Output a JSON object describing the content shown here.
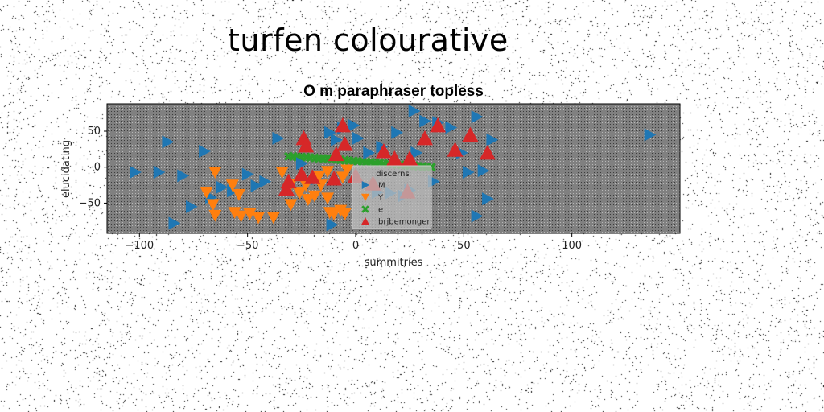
{
  "page": {
    "suptitle": "turfen colourative"
  },
  "chart_data": {
    "type": "scatter",
    "title": "O m paraphraser topless",
    "xlabel": "summitries",
    "ylabel": "elucidating",
    "xlim": [
      -115,
      150
    ],
    "ylim": [
      -92,
      88
    ],
    "xticks": [
      -100,
      -50,
      0,
      50,
      100
    ],
    "yticks": [
      50,
      0,
      -50
    ],
    "grid": false,
    "legend": {
      "title": "discerns",
      "placement": "lower-center"
    },
    "colors": {
      "plot_bg": "#808080",
      "M": "#1f77b4",
      "Y": "#ff7f0e",
      "e": "#2ca02c",
      "brjbemonger": "#d62728"
    },
    "series": [
      {
        "name": "M",
        "marker": "triangle-right",
        "color": "#1f77b4",
        "points": [
          [
            -102,
            -7
          ],
          [
            -91,
            -7
          ],
          [
            -80,
            -12
          ],
          [
            -87,
            35
          ],
          [
            -70,
            22
          ],
          [
            -84,
            -78
          ],
          [
            -76,
            -55
          ],
          [
            -67,
            -42
          ],
          [
            -62,
            -28
          ],
          [
            -57,
            -33
          ],
          [
            -50,
            -10
          ],
          [
            -46,
            -26
          ],
          [
            -42,
            -20
          ],
          [
            -36,
            40
          ],
          [
            -25,
            5
          ],
          [
            -18,
            -16
          ],
          [
            -12,
            48
          ],
          [
            -11,
            -80
          ],
          [
            -9,
            38
          ],
          [
            -6,
            54
          ],
          [
            -1,
            58
          ],
          [
            1,
            40
          ],
          [
            6,
            20
          ],
          [
            10,
            -35
          ],
          [
            12,
            28
          ],
          [
            16,
            -36
          ],
          [
            19,
            48
          ],
          [
            22,
            -40
          ],
          [
            25,
            -32
          ],
          [
            28,
            20
          ],
          [
            27,
            78
          ],
          [
            32,
            64
          ],
          [
            38,
            62
          ],
          [
            44,
            55
          ],
          [
            36,
            -20
          ],
          [
            49,
            20
          ],
          [
            52,
            -7
          ],
          [
            56,
            70
          ],
          [
            56,
            -68
          ],
          [
            59,
            -5
          ],
          [
            61,
            -44
          ],
          [
            63,
            38
          ],
          [
            136,
            45
          ]
        ]
      },
      {
        "name": "Y",
        "marker": "triangle-down",
        "color": "#ff7f0e",
        "points": [
          [
            -65,
            -7
          ],
          [
            -69,
            -35
          ],
          [
            -66,
            -52
          ],
          [
            -65,
            -67
          ],
          [
            -57,
            -25
          ],
          [
            -54,
            -38
          ],
          [
            -56,
            -63
          ],
          [
            -53,
            -68
          ],
          [
            -49,
            -65
          ],
          [
            -45,
            -70
          ],
          [
            -38,
            -70
          ],
          [
            -34,
            -7
          ],
          [
            -30,
            -24
          ],
          [
            -30,
            -52
          ],
          [
            -26,
            -36
          ],
          [
            -23,
            -25
          ],
          [
            -22,
            -45
          ],
          [
            -19,
            -40
          ],
          [
            -17,
            -13
          ],
          [
            -16,
            -25
          ],
          [
            -13,
            -6
          ],
          [
            -13,
            -43
          ],
          [
            -12,
            -63
          ],
          [
            -10,
            -65
          ],
          [
            -7,
            -60
          ],
          [
            -6,
            -14
          ],
          [
            -5,
            -65
          ],
          [
            -4,
            -4
          ]
        ]
      },
      {
        "name": "e",
        "marker": "x",
        "color": "#2ca02c",
        "points": [
          [
            -31,
            15
          ],
          [
            -29,
            15
          ],
          [
            -27,
            14
          ],
          [
            -25,
            14
          ],
          [
            -23,
            14
          ],
          [
            -21,
            13
          ],
          [
            -19,
            13
          ],
          [
            -17,
            12
          ],
          [
            -15,
            12
          ],
          [
            -13,
            12
          ],
          [
            -11,
            11
          ],
          [
            -9,
            11
          ],
          [
            -7,
            10
          ],
          [
            -5,
            10
          ],
          [
            -3,
            9
          ],
          [
            -1,
            9
          ],
          [
            1,
            8
          ],
          [
            3,
            8
          ],
          [
            5,
            7
          ],
          [
            7,
            7
          ],
          [
            9,
            6
          ],
          [
            11,
            6
          ],
          [
            13,
            5
          ],
          [
            15,
            5
          ],
          [
            17,
            4
          ],
          [
            19,
            4
          ],
          [
            21,
            3
          ],
          [
            23,
            3
          ],
          [
            25,
            2
          ],
          [
            27,
            2
          ],
          [
            29,
            1
          ],
          [
            31,
            1
          ],
          [
            33,
            0
          ],
          [
            35,
            0
          ]
        ]
      },
      {
        "name": "brjbemonger",
        "marker": "triangle-up",
        "color": "#d62728",
        "points": [
          [
            -24,
            40
          ],
          [
            -23,
            30
          ],
          [
            -31,
            -20
          ],
          [
            -32,
            -30
          ],
          [
            -25,
            -10
          ],
          [
            -20,
            -14
          ],
          [
            -10,
            -16
          ],
          [
            -9,
            18
          ],
          [
            -6,
            58
          ],
          [
            -5,
            32
          ],
          [
            0,
            -12
          ],
          [
            8,
            -23
          ],
          [
            13,
            22
          ],
          [
            18,
            12
          ],
          [
            24,
            -34
          ],
          [
            25,
            12
          ],
          [
            32,
            40
          ],
          [
            38,
            58
          ],
          [
            46,
            24
          ],
          [
            53,
            45
          ],
          [
            61,
            20
          ]
        ]
      }
    ]
  }
}
